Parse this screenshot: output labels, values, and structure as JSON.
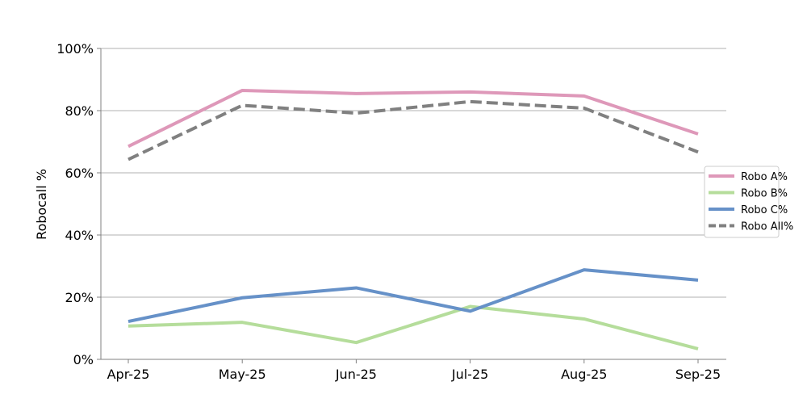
{
  "chart_data": {
    "type": "line",
    "title": "",
    "xlabel": "",
    "ylabel": "Robocall %",
    "categories": [
      "Apr-25",
      "May-25",
      "Jun-25",
      "Jul-25",
      "Aug-25",
      "Sep-25"
    ],
    "ylim": [
      0,
      100
    ],
    "yticks": [
      0,
      20,
      40,
      60,
      80,
      100
    ],
    "ytick_labels": [
      "0%",
      "20%",
      "40%",
      "60%",
      "80%",
      "100%"
    ],
    "grid": "horizontal",
    "legend_position": "right",
    "series": [
      {
        "name": "Robo A%",
        "values": [
          68.5,
          86.5,
          85.5,
          86.0,
          84.7,
          72.5
        ],
        "color": "#de98b9",
        "style": "solid"
      },
      {
        "name": "Robo B%",
        "values": [
          10.7,
          11.9,
          5.4,
          17.0,
          13.0,
          3.4
        ],
        "color": "#b5dd9b",
        "style": "solid"
      },
      {
        "name": "Robo C%",
        "values": [
          12.2,
          19.8,
          23.0,
          15.5,
          28.8,
          25.5
        ],
        "color": "#6691c8",
        "style": "solid"
      },
      {
        "name": "Robo All%",
        "values": [
          64.3,
          81.7,
          79.2,
          82.9,
          80.8,
          66.7
        ],
        "color": "#808080",
        "style": "dashed"
      }
    ]
  }
}
